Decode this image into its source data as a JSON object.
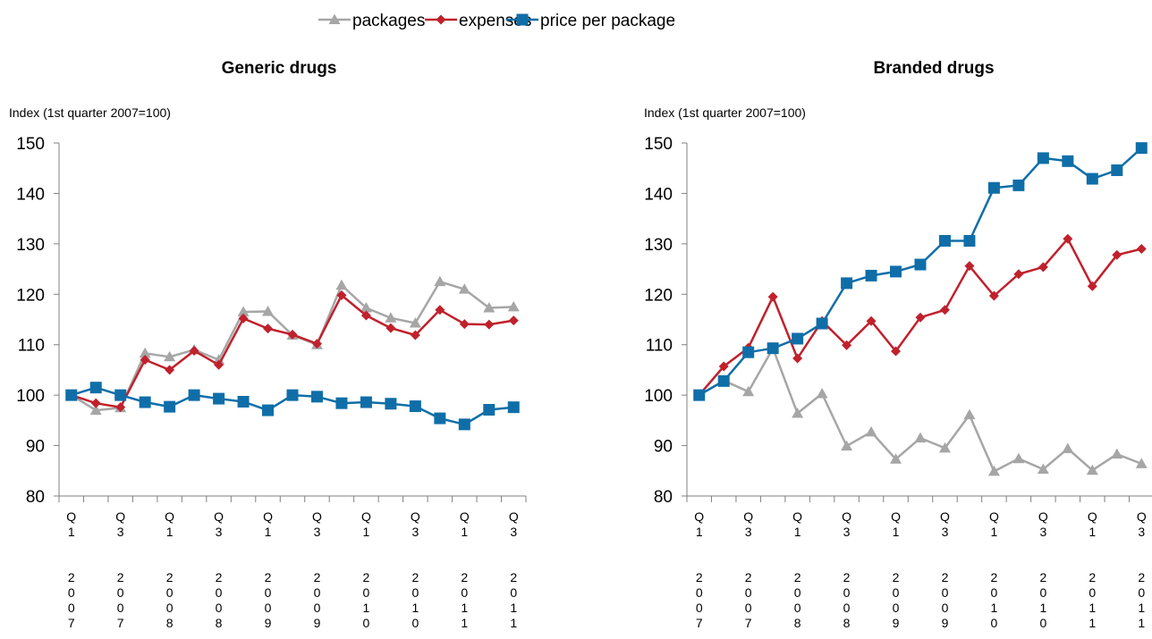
{
  "legend": {
    "items": [
      {
        "label": "packages",
        "color": "#a6a6a6",
        "marker": "triangle"
      },
      {
        "label": "expenses",
        "color": "#c0212c",
        "marker": "diamond"
      },
      {
        "label": "price per package",
        "color": "#0f6ea8",
        "marker": "square"
      }
    ]
  },
  "chart_data": [
    {
      "type": "line",
      "title": "Generic drugs",
      "ylabel": "Index (1st quarter 2007=100)",
      "ylim": [
        80,
        150
      ],
      "yticks": [
        80,
        90,
        100,
        110,
        120,
        130,
        140,
        150
      ],
      "x": [
        "Q1 2007",
        "Q2 2007",
        "Q3 2007",
        "Q4 2007",
        "Q1 2008",
        "Q2 2008",
        "Q3 2008",
        "Q4 2008",
        "Q1 2009",
        "Q2 2009",
        "Q3 2009",
        "Q4 2009",
        "Q1 2010",
        "Q2 2010",
        "Q3 2010",
        "Q4 2010",
        "Q1 2011",
        "Q2 2011",
        "Q3 2011"
      ],
      "tick_labels": [
        {
          "q": "Q1",
          "year": "2007"
        },
        {
          "q": "Q3",
          "year": "2007"
        },
        {
          "q": "Q1",
          "year": "2008"
        },
        {
          "q": "Q3",
          "year": "2008"
        },
        {
          "q": "Q1",
          "year": "2009"
        },
        {
          "q": "Q3",
          "year": "2009"
        },
        {
          "q": "Q1",
          "year": "2010"
        },
        {
          "q": "Q3",
          "year": "2010"
        },
        {
          "q": "Q1",
          "year": "2011"
        },
        {
          "q": "Q3",
          "year": "2011"
        }
      ],
      "series": [
        {
          "name": "packages",
          "values": [
            100,
            97,
            97.5,
            108.3,
            107.6,
            109,
            107,
            116.5,
            116.6,
            111.9,
            110,
            121.8,
            117.3,
            115.3,
            114.3,
            122.5,
            121,
            117.3,
            117.5
          ]
        },
        {
          "name": "expenses",
          "values": [
            100,
            98.4,
            97.6,
            107,
            105,
            108.8,
            106,
            115.2,
            113.2,
            112,
            110.2,
            119.8,
            115.8,
            113.3,
            111.9,
            116.9,
            114.1,
            114,
            114.8
          ]
        },
        {
          "name": "price per package",
          "values": [
            100,
            101.5,
            100,
            98.6,
            97.7,
            100,
            99.3,
            98.7,
            97,
            100,
            99.7,
            98.4,
            98.6,
            98.3,
            97.8,
            95.4,
            94.2,
            97.1,
            97.6
          ]
        }
      ]
    },
    {
      "type": "line",
      "title": "Branded drugs",
      "ylabel": "Index (1st quarter 2007=100)",
      "ylim": [
        80,
        150
      ],
      "yticks": [
        80,
        90,
        100,
        110,
        120,
        130,
        140,
        150
      ],
      "x": [
        "Q1 2007",
        "Q2 2007",
        "Q3 2007",
        "Q4 2007",
        "Q1 2008",
        "Q2 2008",
        "Q3 2008",
        "Q4 2008",
        "Q1 2009",
        "Q2 2009",
        "Q3 2009",
        "Q4 2009",
        "Q1 2010",
        "Q2 2010",
        "Q3 2010",
        "Q4 2010",
        "Q1 2011",
        "Q2 2011",
        "Q3 2011"
      ],
      "tick_labels": [
        {
          "q": "Q1",
          "year": "2007"
        },
        {
          "q": "Q3",
          "year": "2007"
        },
        {
          "q": "Q1",
          "year": "2008"
        },
        {
          "q": "Q3",
          "year": "2008"
        },
        {
          "q": "Q1",
          "year": "2009"
        },
        {
          "q": "Q3",
          "year": "2009"
        },
        {
          "q": "Q1",
          "year": "2010"
        },
        {
          "q": "Q3",
          "year": "2010"
        },
        {
          "q": "Q1",
          "year": "2011"
        },
        {
          "q": "Q3",
          "year": "2011"
        }
      ],
      "series": [
        {
          "name": "packages",
          "values": [
            100,
            102.9,
            100.7,
            109.3,
            96.4,
            100.3,
            89.9,
            92.7,
            87.3,
            91.5,
            89.5,
            96.1,
            84.9,
            87.4,
            85.3,
            89.4,
            85.1,
            88.3,
            86.4
          ]
        },
        {
          "name": "expenses",
          "values": [
            100,
            105.7,
            109.4,
            119.5,
            107.3,
            114.7,
            109.9,
            114.7,
            108.7,
            115.4,
            116.9,
            125.6,
            119.7,
            124,
            125.4,
            131,
            121.6,
            127.8,
            129
          ]
        },
        {
          "name": "price per package",
          "values": [
            100,
            102.8,
            108.5,
            109.3,
            111.2,
            114.2,
            122.2,
            123.7,
            124.5,
            125.9,
            130.6,
            130.6,
            141.1,
            141.6,
            147,
            146.4,
            142.9,
            144.6,
            149
          ]
        }
      ]
    }
  ]
}
